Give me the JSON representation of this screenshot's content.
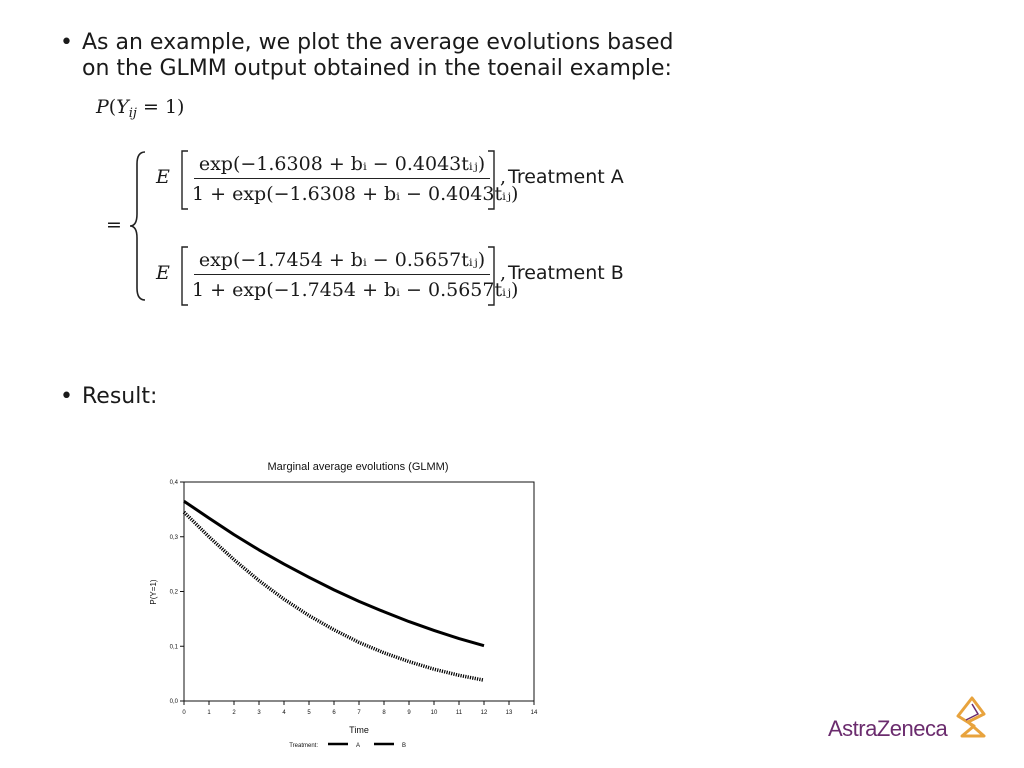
{
  "bullets": {
    "intro_line1": "As an example, we plot the average evolutions based",
    "intro_line2": "on the GLMM output obtained in the toenail example:",
    "result": "Result:"
  },
  "equation": {
    "treatment_a": {
      "numerator": "exp(−1.6308 + bᵢ − 0.4043tᵢⱼ)",
      "denominator": "1 + exp(−1.6308 + bᵢ − 0.4043tᵢⱼ)",
      "label": "Treatment A"
    },
    "treatment_b": {
      "numerator": "exp(−1.7454 + bᵢ − 0.5657tᵢⱼ)",
      "denominator": "1 + exp(−1.7454 + bᵢ − 0.5657tᵢⱼ)",
      "label": "Treatment B"
    }
  },
  "chart_data": {
    "type": "line",
    "title": "Marginal average evolutions (GLMM)",
    "xlabel": "Time",
    "ylabel": "P(Y=1)",
    "xlim": [
      0,
      14
    ],
    "ylim": [
      0,
      0.4
    ],
    "x_ticks": [
      0,
      1,
      2,
      3,
      4,
      5,
      6,
      7,
      8,
      9,
      10,
      11,
      12,
      13,
      14
    ],
    "y_ticks": [
      0,
      0.1,
      0.2,
      0.3,
      0.4
    ],
    "y_tick_labels": [
      "0,0",
      "0,1",
      "0,2",
      "0,3",
      "0,4"
    ],
    "x": [
      0,
      1,
      2,
      3,
      4,
      5,
      6,
      7,
      8,
      9,
      10,
      11,
      12
    ],
    "series": [
      {
        "name": "A",
        "values": [
          0.365,
          0.334,
          0.304,
          0.276,
          0.25,
          0.226,
          0.203,
          0.182,
          0.163,
          0.145,
          0.129,
          0.114,
          0.101
        ],
        "style": "solid"
      },
      {
        "name": "B",
        "values": [
          0.345,
          0.3,
          0.258,
          0.22,
          0.186,
          0.156,
          0.13,
          0.107,
          0.088,
          0.072,
          0.058,
          0.047,
          0.038
        ],
        "style": "dotted"
      }
    ],
    "legend": {
      "title": "Treatment:",
      "placement": "bottom"
    },
    "grid": false
  },
  "logo": {
    "text": "AstraZeneca",
    "color": "#6b2c6e"
  },
  "colors": {
    "text": "#1a1a1a",
    "line": "#000000"
  }
}
